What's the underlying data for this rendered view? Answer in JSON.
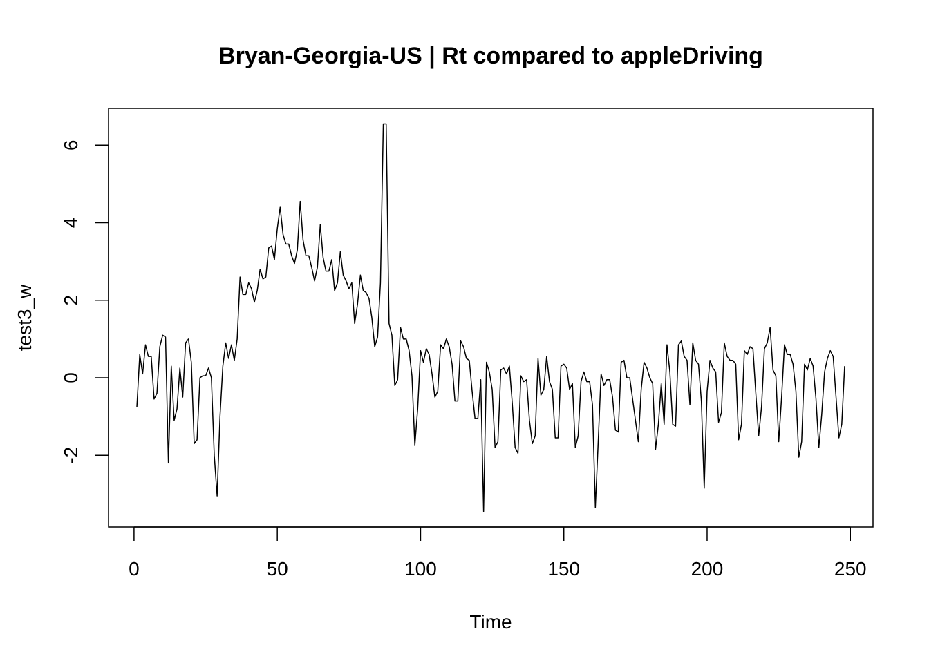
{
  "chart_data": {
    "type": "line",
    "title": "Bryan-Georgia-US | Rt compared to appleDriving",
    "xlabel": "Time",
    "ylabel": "test3_w",
    "xlim": [
      -8.9,
      257.9
    ],
    "ylim": [
      -3.85,
      6.95
    ],
    "x_ticks": [
      0,
      50,
      100,
      150,
      200,
      250
    ],
    "y_ticks": [
      -2,
      0,
      2,
      4,
      6
    ],
    "x_tick_labels": [
      "0",
      "50",
      "100",
      "150",
      "200",
      "250"
    ],
    "y_tick_labels": [
      "-2",
      "0",
      "2",
      "4",
      "6"
    ],
    "grid": false,
    "line_color": "#000000",
    "series": [
      {
        "x_start": 1,
        "values": [
          -0.75,
          0.6,
          0.1,
          0.85,
          0.55,
          0.55,
          -0.55,
          -0.4,
          0.8,
          1.1,
          1.05,
          -2.2,
          0.3,
          -1.1,
          -0.8,
          0.25,
          -0.5,
          0.9,
          1.0,
          0.4,
          -1.7,
          -1.6,
          0.0,
          0.05,
          0.05,
          0.25,
          0.0,
          -2.0,
          -3.05,
          -1.0,
          0.3,
          0.9,
          0.5,
          0.85,
          0.45,
          1.0,
          2.6,
          2.15,
          2.15,
          2.45,
          2.3,
          1.95,
          2.25,
          2.8,
          2.55,
          2.6,
          3.35,
          3.4,
          3.05,
          3.85,
          4.4,
          3.7,
          3.45,
          3.45,
          3.15,
          2.95,
          3.3,
          4.55,
          3.55,
          3.15,
          3.15,
          2.85,
          2.5,
          2.85,
          3.95,
          3.1,
          2.75,
          2.75,
          3.05,
          2.25,
          2.45,
          3.25,
          2.65,
          2.5,
          2.3,
          2.45,
          1.4,
          1.9,
          2.65,
          2.25,
          2.2,
          2.05,
          1.55,
          0.8,
          1.05,
          2.45,
          6.55,
          6.55,
          1.4,
          1.1,
          -0.2,
          -0.05,
          1.3,
          1.0,
          1.0,
          0.7,
          0.05,
          -1.75,
          -0.8,
          0.7,
          0.4,
          0.75,
          0.6,
          0.1,
          -0.5,
          -0.35,
          0.85,
          0.75,
          1.0,
          0.8,
          0.35,
          -0.6,
          -0.6,
          0.95,
          0.8,
          0.5,
          0.45,
          -0.35,
          -1.05,
          -1.05,
          -0.05,
          -3.45,
          0.4,
          0.15,
          -0.3,
          -1.8,
          -1.65,
          0.2,
          0.25,
          0.1,
          0.3,
          -0.65,
          -1.8,
          -1.95,
          0.05,
          -0.1,
          -0.05,
          -1.1,
          -1.7,
          -1.5,
          0.5,
          -0.45,
          -0.3,
          0.55,
          -0.1,
          -0.3,
          -1.55,
          -1.55,
          0.3,
          0.35,
          0.25,
          -0.3,
          -0.15,
          -1.8,
          -1.5,
          -0.1,
          0.15,
          -0.1,
          -0.1,
          -0.7,
          -3.35,
          -1.65,
          0.1,
          -0.2,
          -0.05,
          -0.05,
          -0.5,
          -1.35,
          -1.4,
          0.4,
          0.45,
          0.0,
          0.0,
          -0.55,
          -1.1,
          -1.65,
          -0.3,
          0.4,
          0.25,
          0.0,
          -0.15,
          -1.85,
          -1.2,
          -0.15,
          -1.2,
          0.85,
          0.15,
          -1.2,
          -1.25,
          0.85,
          0.95,
          0.55,
          0.45,
          -0.7,
          0.9,
          0.45,
          0.35,
          -0.6,
          -2.85,
          -0.35,
          0.45,
          0.25,
          0.15,
          -1.15,
          -0.9,
          0.9,
          0.55,
          0.45,
          0.45,
          0.35,
          -1.6,
          -1.2,
          0.7,
          0.6,
          0.8,
          0.75,
          -0.4,
          -1.5,
          -0.75,
          0.75,
          0.9,
          1.3,
          0.2,
          0.05,
          -1.65,
          -0.5,
          0.85,
          0.6,
          0.6,
          0.35,
          -0.35,
          -2.05,
          -1.65,
          0.35,
          0.2,
          0.5,
          0.3,
          -0.55,
          -1.8,
          -0.95,
          0.15,
          0.5,
          0.7,
          0.55,
          -0.5,
          -1.55,
          -1.2,
          0.3
        ]
      }
    ]
  }
}
